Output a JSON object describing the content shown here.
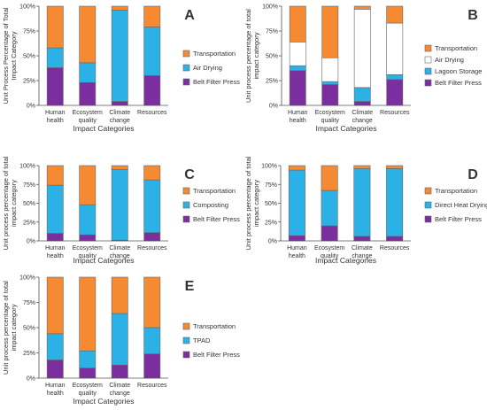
{
  "colors": {
    "Transportation": "#f58a32",
    "Air Drying": "#2bb1e6",
    "Lagoon Storage": "#2bb1e6",
    "Composting": "#2bb1e6",
    "Direct Heat Drying": "#2bb1e6",
    "TPAD": "#2bb1e6",
    "Belt Filter Press": "#7b2f9e",
    "Air Drying B": "#ffffff",
    "axis": "#555555",
    "edge": "#666666"
  },
  "chart_data": [
    {
      "type": "bar",
      "stacked": true,
      "panel_label": "A",
      "title": "",
      "xlabel": "Impact Categories",
      "ylabel_lines": [
        "Unit Process Percentage of Total",
        "Impact Category"
      ],
      "categories": [
        [
          "Human",
          "health"
        ],
        [
          "Ecosystem",
          "quality"
        ],
        [
          "Climate",
          "change"
        ],
        [
          "Resources"
        ]
      ],
      "yticks": [
        "0%",
        "25%",
        "50%",
        "75%",
        "100%"
      ],
      "ylim": [
        0,
        100
      ],
      "grid": false,
      "legend_position": "right",
      "series": [
        {
          "name": "Belt Filter Press",
          "values": [
            38,
            23,
            4,
            30
          ]
        },
        {
          "name": "Air Drying",
          "values": [
            20,
            20,
            92,
            49
          ]
        },
        {
          "name": "Transportation",
          "values": [
            42,
            57,
            4,
            21
          ]
        }
      ]
    },
    {
      "type": "bar",
      "stacked": true,
      "panel_label": "B",
      "title": "",
      "xlabel": "Impact Categories",
      "ylabel_lines": [
        "Unit process percentage of total",
        "impact category"
      ],
      "categories": [
        [
          "Human",
          "health"
        ],
        [
          "Ecosystem",
          "quality"
        ],
        [
          "Climate",
          "change"
        ],
        [
          "Resources"
        ]
      ],
      "yticks": [
        "0%",
        "25%",
        "50%",
        "75%",
        "100%"
      ],
      "ylim": [
        0,
        100
      ],
      "grid": false,
      "legend_position": "right",
      "series": [
        {
          "name": "Belt Filter Press",
          "values": [
            35,
            21,
            4,
            26
          ]
        },
        {
          "name": "Lagoon Storage",
          "values": [
            5,
            3,
            14,
            5
          ]
        },
        {
          "name": "Air Drying",
          "values": [
            24,
            24,
            79,
            52
          ]
        },
        {
          "name": "Transportation",
          "values": [
            36,
            52,
            3,
            17
          ]
        }
      ]
    },
    {
      "type": "bar",
      "stacked": true,
      "panel_label": "C",
      "title": "",
      "xlabel": "Impact Categories",
      "ylabel_lines": [
        "Unit process percentage of total",
        "impact category"
      ],
      "categories": [
        [
          "Human",
          "health"
        ],
        [
          "Ecosystem",
          "quality"
        ],
        [
          "Climate",
          "change"
        ],
        [
          "Resources"
        ]
      ],
      "yticks": [
        "0%",
        "25%",
        "50%",
        "75%",
        "100%"
      ],
      "ylim": [
        0,
        100
      ],
      "grid": false,
      "legend_position": "right",
      "series": [
        {
          "name": "Belt Filter Press",
          "values": [
            10,
            8,
            1,
            11
          ]
        },
        {
          "name": "Composting",
          "values": [
            64,
            40,
            94,
            70
          ]
        },
        {
          "name": "Transportation",
          "values": [
            26,
            52,
            5,
            19
          ]
        }
      ]
    },
    {
      "type": "bar",
      "stacked": true,
      "panel_label": "D",
      "title": "",
      "xlabel": "Impact Categories",
      "ylabel_lines": [
        "Unit process percentage of total",
        "impact category"
      ],
      "categories": [
        [
          "Human",
          "health"
        ],
        [
          "Ecosystem",
          "quality"
        ],
        [
          "Climate",
          "change"
        ],
        [
          "Resources"
        ]
      ],
      "yticks": [
        "0%",
        "25%",
        "50%",
        "75%",
        "100%"
      ],
      "ylim": [
        0,
        100
      ],
      "grid": false,
      "legend_position": "right",
      "series": [
        {
          "name": "Belt Filter Press",
          "values": [
            7,
            20,
            6,
            6
          ]
        },
        {
          "name": "Direct Heat Drying",
          "values": [
            87,
            47,
            90,
            90
          ]
        },
        {
          "name": "Transportation",
          "values": [
            6,
            33,
            4,
            4
          ]
        }
      ]
    },
    {
      "type": "bar",
      "stacked": true,
      "panel_label": "E",
      "title": "",
      "xlabel": "Impact Categories",
      "ylabel_lines": [
        "Unit process percentage of total",
        "impact category"
      ],
      "categories": [
        [
          "Human",
          "health"
        ],
        [
          "Ecosystem",
          "quality"
        ],
        [
          "Climate",
          "change"
        ],
        [
          "Resources"
        ]
      ],
      "yticks": [
        "0%",
        "25%",
        "50%",
        "75%",
        "100%"
      ],
      "ylim": [
        0,
        100
      ],
      "grid": false,
      "legend_position": "right",
      "series": [
        {
          "name": "Belt Filter Press",
          "values": [
            18,
            10,
            13,
            24
          ]
        },
        {
          "name": "TPAD",
          "values": [
            26,
            17,
            51,
            26
          ]
        },
        {
          "name": "Transportation",
          "values": [
            56,
            73,
            36,
            50
          ]
        }
      ]
    }
  ]
}
